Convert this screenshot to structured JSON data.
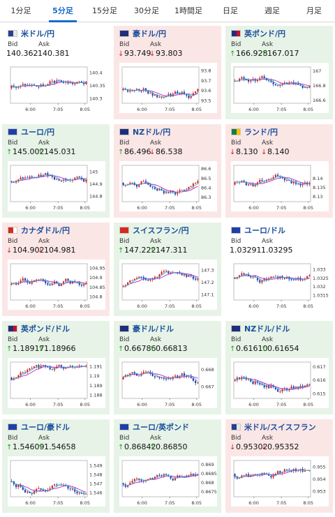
{
  "tabs": [
    {
      "label": "1分足",
      "active": false
    },
    {
      "label": "5分足",
      "active": true
    },
    {
      "label": "15分足",
      "active": false
    },
    {
      "label": "30分足",
      "active": false
    },
    {
      "label": "1時間足",
      "active": false
    },
    {
      "label": "日足",
      "active": false
    },
    {
      "label": "週足",
      "active": false
    },
    {
      "label": "月足",
      "active": false
    }
  ],
  "labels": {
    "bid": "Bid",
    "ask": "Ask"
  },
  "colors": {
    "up_bg": "#e7f3e7",
    "down_bg": "#fbe6e6",
    "candle_up": "#e02020",
    "candle_down": "#1f3fa8",
    "ma_line": "#c020c0",
    "ma_line2": "#2fb7c8",
    "pair_title": "#1a4f9c",
    "active_tab": "#1b6ac9"
  },
  "pairs": [
    {
      "name": "米ドル/円",
      "flag": "us",
      "trend": "flat",
      "bid": "140.362",
      "ask": "140.381",
      "bid_dir": "none",
      "ask_dir": "none",
      "chart": {
        "yticks": [
          "140.4",
          "140.35",
          "140.3"
        ],
        "ylim": [
          140.28,
          140.42
        ],
        "xticks": [
          "6:00",
          "7:05",
          "8:05"
        ]
      }
    },
    {
      "name": "豪ドル/円",
      "flag": "au",
      "trend": "down",
      "bid": "93.749",
      "ask": "93.803",
      "bid_dir": "down",
      "ask_dir": "down",
      "chart": {
        "yticks": [
          "93.8",
          "93.7",
          "93.6",
          "93.5"
        ],
        "ylim": [
          93.47,
          93.83
        ],
        "xticks": [
          "6:00",
          "7:05",
          "8:05"
        ]
      }
    },
    {
      "name": "英ポンド/円",
      "flag": "gb",
      "trend": "up",
      "bid": "166.928",
      "ask": "167.017",
      "bid_dir": "up",
      "ask_dir": "up",
      "chart": {
        "yticks": [
          "167",
          "166.8",
          "166.6"
        ],
        "ylim": [
          166.55,
          167.05
        ],
        "xticks": [
          "6:00",
          "7:05",
          "8:05"
        ]
      }
    },
    {
      "name": "ユーロ/円",
      "flag": "eu",
      "trend": "up",
      "bid": "145.002",
      "ask": "145.031",
      "bid_dir": "up",
      "ask_dir": "up",
      "chart": {
        "yticks": [
          "145",
          "144.9",
          "144.8"
        ],
        "ylim": [
          144.75,
          145.05
        ],
        "xticks": [
          "6:00",
          "7:05",
          "8:05"
        ]
      }
    },
    {
      "name": "NZドル/円",
      "flag": "nz",
      "trend": "down",
      "bid": "86.496",
      "ask": "86.538",
      "bid_dir": "up",
      "ask_dir": "down",
      "chart": {
        "yticks": [
          "86.6",
          "86.5",
          "86.4",
          "86.3"
        ],
        "ylim": [
          86.25,
          86.63
        ],
        "xticks": [
          "6:00",
          "7:05",
          "8:05"
        ]
      }
    },
    {
      "name": "ランド/円",
      "flag": "za",
      "trend": "down",
      "bid": "8.130",
      "ask": "8.140",
      "bid_dir": "down",
      "ask_dir": "down",
      "chart": {
        "yticks": [
          "8.14",
          "8.135",
          "8.13"
        ],
        "ylim": [
          8.127,
          8.147
        ],
        "xticks": [
          "6:00",
          "7:05",
          "8:05"
        ]
      }
    },
    {
      "name": "カナダドル/円",
      "flag": "ca",
      "trend": "down",
      "bid": "104.902",
      "ask": "104.981",
      "bid_dir": "down",
      "ask_dir": "down",
      "chart": {
        "yticks": [
          "104.95",
          "104.9",
          "104.85",
          "104.8"
        ],
        "ylim": [
          104.78,
          104.97
        ],
        "xticks": [
          "6:00",
          "7:05",
          "8:05"
        ]
      }
    },
    {
      "name": "スイスフラン/円",
      "flag": "ch",
      "trend": "up",
      "bid": "147.222",
      "ask": "147.311",
      "bid_dir": "up",
      "ask_dir": "up",
      "chart": {
        "yticks": [
          "147.3",
          "147.2",
          "147.1"
        ],
        "ylim": [
          147.05,
          147.35
        ],
        "xticks": [
          "6:00",
          "7:05",
          "8:05"
        ]
      }
    },
    {
      "name": "ユーロ/ドル",
      "flag": "eu",
      "trend": "flat",
      "bid": "1.03291",
      "ask": "1.03295",
      "bid_dir": "none",
      "ask_dir": "none",
      "chart": {
        "yticks": [
          "1.033",
          "1.0325",
          "1.032",
          "1.0315"
        ],
        "ylim": [
          1.0312,
          1.0333
        ],
        "xticks": [
          "6:00",
          "7:05",
          "8:05"
        ]
      }
    },
    {
      "name": "英ポンド/ドル",
      "flag": "gb",
      "trend": "up",
      "bid": "1.18917",
      "ask": "1.18966",
      "bid_dir": "up",
      "ask_dir": "up",
      "chart": {
        "yticks": [
          "1.191",
          "1.19",
          "1.189",
          "1.188"
        ],
        "ylim": [
          1.1876,
          1.1914
        ],
        "xticks": [
          "6:00",
          "7:05",
          "8:05"
        ]
      }
    },
    {
      "name": "豪ドル/ドル",
      "flag": "au",
      "trend": "up",
      "bid": "0.66786",
      "ask": "0.66813",
      "bid_dir": "up",
      "ask_dir": "up",
      "chart": {
        "yticks": [
          "0.668",
          "0.667"
        ],
        "ylim": [
          0.6663,
          0.6684
        ],
        "xticks": [
          "6:00",
          "7:05",
          "8:05"
        ]
      }
    },
    {
      "name": "NZドル/ドル",
      "flag": "nz",
      "trend": "up",
      "bid": "0.61610",
      "ask": "0.61654",
      "bid_dir": "up",
      "ask_dir": "up",
      "chart": {
        "yticks": [
          "0.617",
          "0.616",
          "0.615"
        ],
        "ylim": [
          0.6146,
          0.6173
        ],
        "xticks": [
          "6:00",
          "7:05",
          "8:05"
        ]
      }
    },
    {
      "name": "ユーロ/豪ドル",
      "flag": "eu",
      "trend": "up",
      "bid": "1.54609",
      "ask": "1.54658",
      "bid_dir": "up",
      "ask_dir": "up",
      "chart": {
        "yticks": [
          "1.549",
          "1.548",
          "1.547",
          "1.546"
        ],
        "ylim": [
          1.5455,
          1.5495
        ],
        "xticks": [
          "6:00",
          "7:05",
          "8:05"
        ]
      }
    },
    {
      "name": "ユーロ/英ポンド",
      "flag": "eu",
      "trend": "up",
      "bid": "0.86842",
      "ask": "0.86850",
      "bid_dir": "up",
      "ask_dir": "up",
      "chart": {
        "yticks": [
          "0.869",
          "0.8685",
          "0.868",
          "0.8675"
        ],
        "ylim": [
          0.8672,
          0.8692
        ],
        "xticks": [
          "6:00",
          "7:05",
          "8:05"
        ]
      }
    },
    {
      "name": "米ドル/スイスフラン",
      "flag": "us",
      "trend": "down",
      "bid": "0.95302",
      "ask": "0.95352",
      "bid_dir": "down",
      "ask_dir": "down",
      "chart": {
        "yticks": [
          "0.955",
          "0.954",
          "0.953"
        ],
        "ylim": [
          0.9525,
          0.9555
        ],
        "xticks": [
          "6:00",
          "7:05",
          "8:05"
        ]
      }
    }
  ]
}
